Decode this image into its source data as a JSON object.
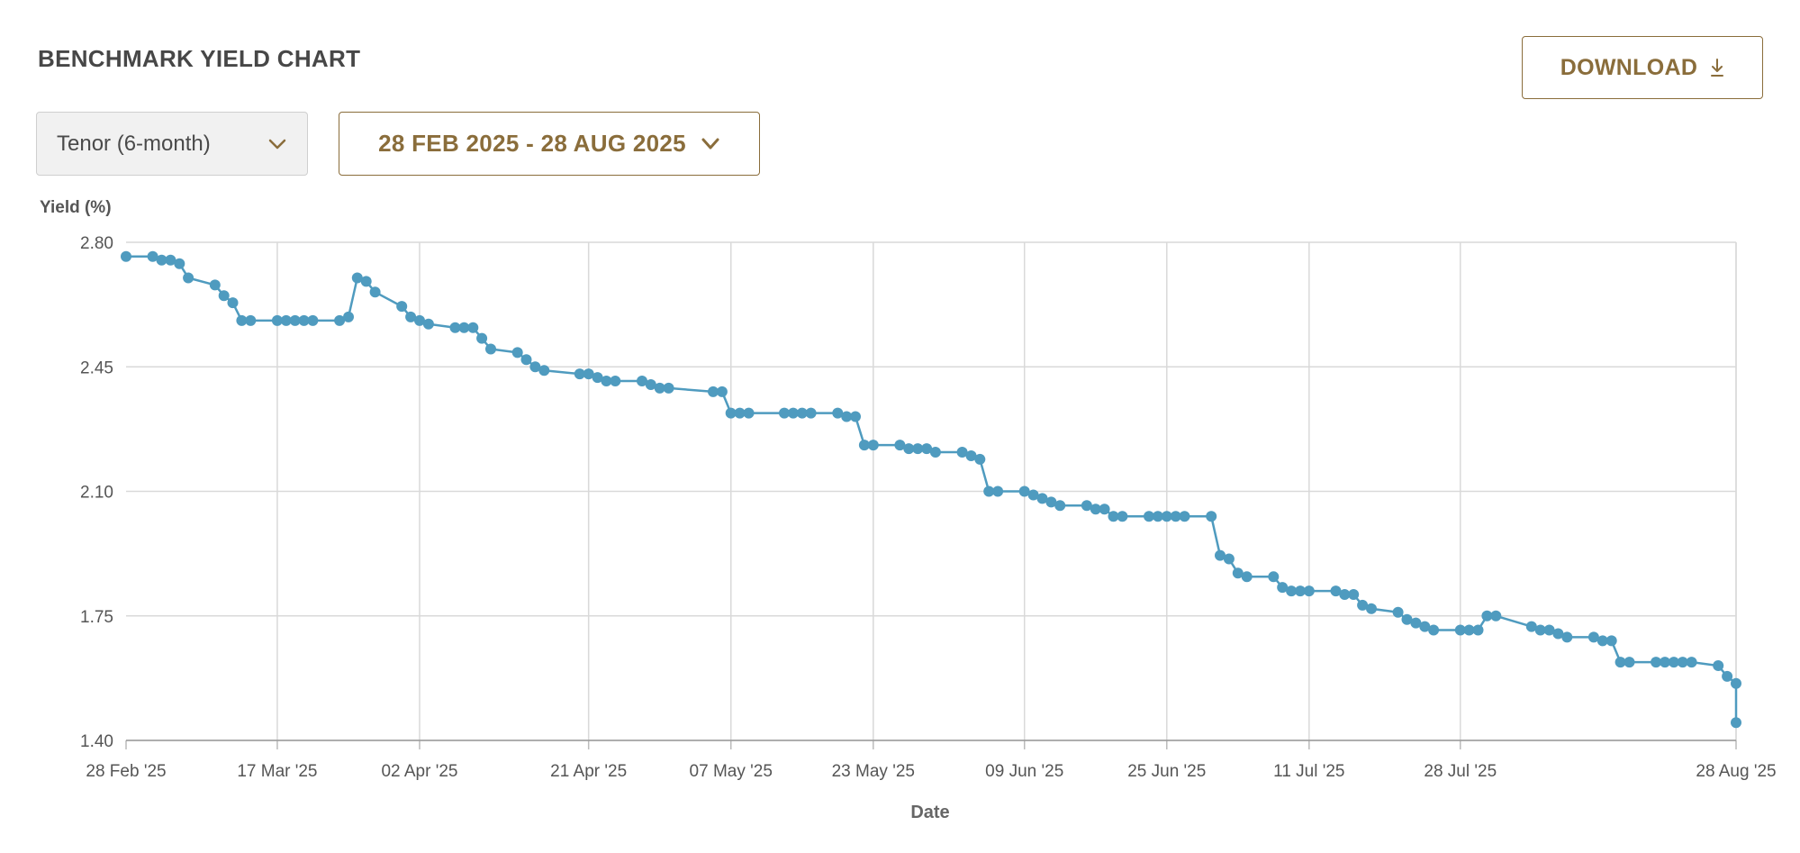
{
  "header": {
    "title": "BENCHMARK YIELD CHART",
    "download_label": "DOWNLOAD"
  },
  "controls": {
    "tenor_selected": "Tenor (6-month)",
    "date_range": "28 FEB 2025 - 28 AUG 2025"
  },
  "icons": {
    "download": "download-icon",
    "tenor_dropdown": "chevron-down-icon",
    "range_dropdown": "chevron-down-icon"
  },
  "colors": {
    "accent": "#8a6d3b",
    "series": "#4f9bbf",
    "grid": "#d9d9d9"
  },
  "chart_data": {
    "type": "line",
    "ylabel": "Yield (%)",
    "xlabel": "Date",
    "ylim": [
      1.4,
      2.8
    ],
    "yticks": [
      "2.80",
      "2.45",
      "2.10",
      "1.75",
      "1.40"
    ],
    "xlim": [
      "2025-02-28",
      "2025-08-28"
    ],
    "xticks": [
      {
        "date": "2025-02-28",
        "label": "28 Feb '25"
      },
      {
        "date": "2025-03-17",
        "label": "17 Mar '25"
      },
      {
        "date": "2025-04-02",
        "label": "02 Apr '25"
      },
      {
        "date": "2025-04-21",
        "label": "21 Apr '25"
      },
      {
        "date": "2025-05-07",
        "label": "07 May '25"
      },
      {
        "date": "2025-05-23",
        "label": "23 May '25"
      },
      {
        "date": "2025-06-09",
        "label": "09 Jun '25"
      },
      {
        "date": "2025-06-25",
        "label": "25 Jun '25"
      },
      {
        "date": "2025-07-11",
        "label": "11 Jul '25"
      },
      {
        "date": "2025-07-28",
        "label": "28 Jul '25"
      },
      {
        "date": "2025-08-28",
        "label": "28 Aug '25"
      }
    ],
    "grid": true,
    "series": [
      {
        "points": [
          [
            "2025-02-28",
            2.76
          ],
          [
            "2025-03-03",
            2.76
          ],
          [
            "2025-03-04",
            2.75
          ],
          [
            "2025-03-05",
            2.75
          ],
          [
            "2025-03-06",
            2.74
          ],
          [
            "2025-03-07",
            2.7
          ],
          [
            "2025-03-10",
            2.68
          ],
          [
            "2025-03-11",
            2.65
          ],
          [
            "2025-03-12",
            2.63
          ],
          [
            "2025-03-13",
            2.58
          ],
          [
            "2025-03-14",
            2.58
          ],
          [
            "2025-03-17",
            2.58
          ],
          [
            "2025-03-18",
            2.58
          ],
          [
            "2025-03-19",
            2.58
          ],
          [
            "2025-03-20",
            2.58
          ],
          [
            "2025-03-21",
            2.58
          ],
          [
            "2025-03-24",
            2.58
          ],
          [
            "2025-03-25",
            2.59
          ],
          [
            "2025-03-26",
            2.7
          ],
          [
            "2025-03-27",
            2.69
          ],
          [
            "2025-03-28",
            2.66
          ],
          [
            "2025-03-31",
            2.62
          ],
          [
            "2025-04-01",
            2.59
          ],
          [
            "2025-04-02",
            2.58
          ],
          [
            "2025-04-03",
            2.57
          ],
          [
            "2025-04-06",
            2.56
          ],
          [
            "2025-04-07",
            2.56
          ],
          [
            "2025-04-08",
            2.56
          ],
          [
            "2025-04-09",
            2.53
          ],
          [
            "2025-04-10",
            2.5
          ],
          [
            "2025-04-13",
            2.49
          ],
          [
            "2025-04-14",
            2.47
          ],
          [
            "2025-04-15",
            2.45
          ],
          [
            "2025-04-16",
            2.44
          ],
          [
            "2025-04-20",
            2.43
          ],
          [
            "2025-04-21",
            2.43
          ],
          [
            "2025-04-22",
            2.42
          ],
          [
            "2025-04-23",
            2.41
          ],
          [
            "2025-04-24",
            2.41
          ],
          [
            "2025-04-27",
            2.41
          ],
          [
            "2025-04-28",
            2.4
          ],
          [
            "2025-04-29",
            2.39
          ],
          [
            "2025-04-30",
            2.39
          ],
          [
            "2025-05-05",
            2.38
          ],
          [
            "2025-05-06",
            2.38
          ],
          [
            "2025-05-07",
            2.32
          ],
          [
            "2025-05-08",
            2.32
          ],
          [
            "2025-05-09",
            2.32
          ],
          [
            "2025-05-13",
            2.32
          ],
          [
            "2025-05-14",
            2.32
          ],
          [
            "2025-05-15",
            2.32
          ],
          [
            "2025-05-16",
            2.32
          ],
          [
            "2025-05-19",
            2.32
          ],
          [
            "2025-05-20",
            2.31
          ],
          [
            "2025-05-21",
            2.31
          ],
          [
            "2025-05-22",
            2.23
          ],
          [
            "2025-05-23",
            2.23
          ],
          [
            "2025-05-26",
            2.23
          ],
          [
            "2025-05-27",
            2.22
          ],
          [
            "2025-05-28",
            2.22
          ],
          [
            "2025-05-29",
            2.22
          ],
          [
            "2025-05-30",
            2.21
          ],
          [
            "2025-06-02",
            2.21
          ],
          [
            "2025-06-03",
            2.2
          ],
          [
            "2025-06-04",
            2.19
          ],
          [
            "2025-06-05",
            2.1
          ],
          [
            "2025-06-06",
            2.1
          ],
          [
            "2025-06-09",
            2.1
          ],
          [
            "2025-06-10",
            2.09
          ],
          [
            "2025-06-11",
            2.08
          ],
          [
            "2025-06-12",
            2.07
          ],
          [
            "2025-06-13",
            2.06
          ],
          [
            "2025-06-16",
            2.06
          ],
          [
            "2025-06-17",
            2.05
          ],
          [
            "2025-06-18",
            2.05
          ],
          [
            "2025-06-19",
            2.03
          ],
          [
            "2025-06-20",
            2.03
          ],
          [
            "2025-06-23",
            2.03
          ],
          [
            "2025-06-24",
            2.03
          ],
          [
            "2025-06-25",
            2.03
          ],
          [
            "2025-06-26",
            2.03
          ],
          [
            "2025-06-27",
            2.03
          ],
          [
            "2025-06-30",
            2.03
          ],
          [
            "2025-07-01",
            1.92
          ],
          [
            "2025-07-02",
            1.91
          ],
          [
            "2025-07-03",
            1.87
          ],
          [
            "2025-07-04",
            1.86
          ],
          [
            "2025-07-07",
            1.86
          ],
          [
            "2025-07-08",
            1.83
          ],
          [
            "2025-07-09",
            1.82
          ],
          [
            "2025-07-10",
            1.82
          ],
          [
            "2025-07-11",
            1.82
          ],
          [
            "2025-07-14",
            1.82
          ],
          [
            "2025-07-15",
            1.81
          ],
          [
            "2025-07-16",
            1.81
          ],
          [
            "2025-07-17",
            1.78
          ],
          [
            "2025-07-18",
            1.77
          ],
          [
            "2025-07-21",
            1.76
          ],
          [
            "2025-07-22",
            1.74
          ],
          [
            "2025-07-23",
            1.73
          ],
          [
            "2025-07-24",
            1.72
          ],
          [
            "2025-07-25",
            1.71
          ],
          [
            "2025-07-28",
            1.71
          ],
          [
            "2025-07-29",
            1.71
          ],
          [
            "2025-07-30",
            1.71
          ],
          [
            "2025-07-31",
            1.75
          ],
          [
            "2025-08-01",
            1.75
          ],
          [
            "2025-08-05",
            1.72
          ],
          [
            "2025-08-06",
            1.71
          ],
          [
            "2025-08-07",
            1.71
          ],
          [
            "2025-08-08",
            1.7
          ],
          [
            "2025-08-09",
            1.69
          ],
          [
            "2025-08-12",
            1.69
          ],
          [
            "2025-08-13",
            1.68
          ],
          [
            "2025-08-14",
            1.68
          ],
          [
            "2025-08-15",
            1.62
          ],
          [
            "2025-08-16",
            1.62
          ],
          [
            "2025-08-19",
            1.62
          ],
          [
            "2025-08-20",
            1.62
          ],
          [
            "2025-08-21",
            1.62
          ],
          [
            "2025-08-22",
            1.62
          ],
          [
            "2025-08-23",
            1.62
          ],
          [
            "2025-08-26",
            1.61
          ],
          [
            "2025-08-27",
            1.58
          ],
          [
            "2025-08-28",
            1.56
          ],
          [
            "2025-08-28",
            1.45
          ]
        ]
      }
    ]
  }
}
